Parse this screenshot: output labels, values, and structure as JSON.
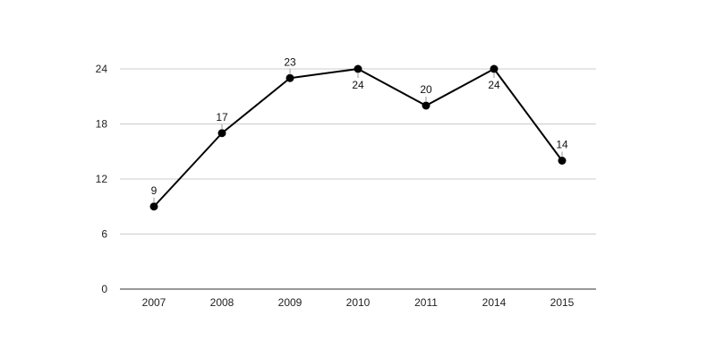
{
  "chart_data": {
    "type": "line",
    "title": "",
    "xlabel": "",
    "ylabel": "",
    "categories": [
      "2007",
      "2008",
      "2009",
      "2010",
      "2011",
      "2014",
      "2015"
    ],
    "series": [
      {
        "values": [
          9,
          17,
          23,
          24,
          20,
          24,
          14
        ],
        "color": "#000000"
      }
    ],
    "ylim": [
      0,
      24
    ],
    "yticks": [
      0,
      6,
      12,
      18,
      24
    ],
    "grid": true,
    "legend": "none",
    "data_labels": true
  }
}
